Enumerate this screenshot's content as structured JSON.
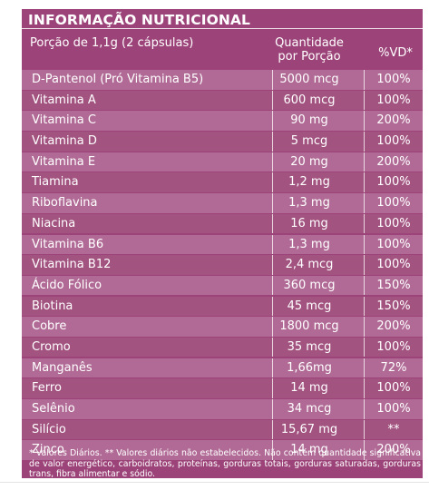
{
  "table": {
    "title": "INFORMAÇÃO NUTRICIONAL",
    "serving": "Porção de 1,1g (2 cápsulas)",
    "col_qty_line1": "Quantidade",
    "col_qty_line2": "por Porção",
    "col_vd": "%VD*",
    "rows": [
      {
        "name": "D-Pantenol (Pró Vitamina B5)",
        "qty": "5000 mcg",
        "vd": "100%"
      },
      {
        "name": "Vitamina A",
        "qty": "600 mcg",
        "vd": "100%"
      },
      {
        "name": "Vitamina C",
        "qty": "90 mg",
        "vd": "200%"
      },
      {
        "name": "Vitamina D",
        "qty": "5 mcg",
        "vd": "100%"
      },
      {
        "name": "Vitamina E",
        "qty": "20 mg",
        "vd": "200%"
      },
      {
        "name": "Tiamina",
        "qty": "1,2 mg",
        "vd": "100%"
      },
      {
        "name": "Riboflavina",
        "qty": "1,3 mg",
        "vd": "100%"
      },
      {
        "name": "Niacina",
        "qty": "16 mg",
        "vd": "100%"
      },
      {
        "name": "Vitamina B6",
        "qty": "1,3 mg",
        "vd": "100%"
      },
      {
        "name": "Vitamina B12",
        "qty": "2,4 mcg",
        "vd": "100%"
      },
      {
        "name": "Ácido Fólico",
        "qty": "360 mcg",
        "vd": "150%"
      },
      {
        "name": "Biotina",
        "qty": "45 mcg",
        "vd": "150%"
      },
      {
        "name": "Cobre",
        "qty": "1800 mcg",
        "vd": "200%"
      },
      {
        "name": "Cromo",
        "qty": "35 mcg",
        "vd": "100%"
      },
      {
        "name": "Manganês",
        "qty": "1,66mg",
        "vd": "72%"
      },
      {
        "name": "Ferro",
        "qty": "14 mg",
        "vd": "100%"
      },
      {
        "name": "Selênio",
        "qty": "34 mcg",
        "vd": "100%"
      },
      {
        "name": "Silício",
        "qty": "15,67 mg",
        "vd": "**"
      },
      {
        "name": "Zinco",
        "qty": "14 mg",
        "vd": "200%"
      }
    ],
    "footnote": "* Valores Diários. ** Valores diários não estabelecidos. Não contém quantidade significativa de valor energético, carboidratos, proteínas, gorduras totais, gorduras saturadas, gorduras trans, fibra alimentar e sódio."
  },
  "colors": {
    "background": "#9c4479",
    "row_light": "#b06a95",
    "row_dark": "#a25380",
    "text": "#ffffff"
  }
}
